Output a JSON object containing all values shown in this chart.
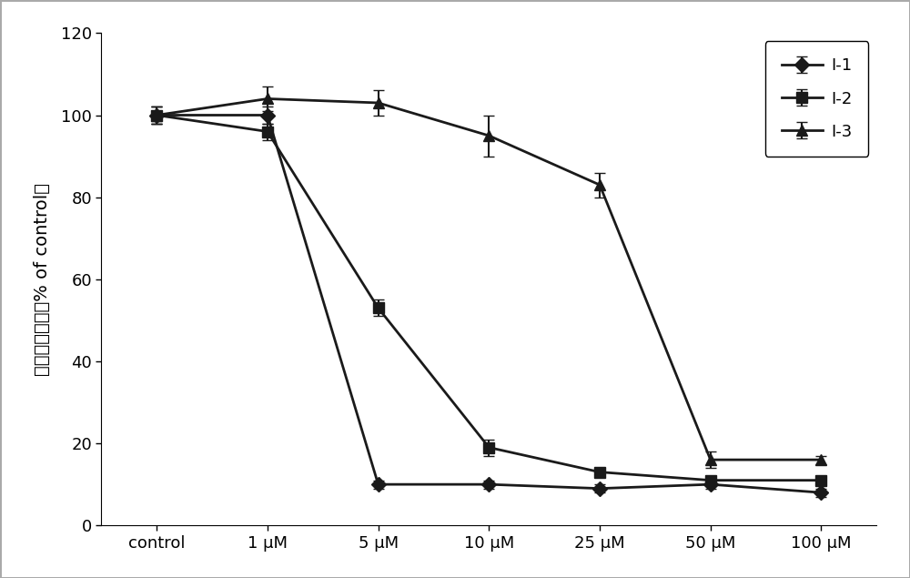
{
  "x_labels": [
    "control",
    "1 μM",
    "5 μM",
    "10 μM",
    "25 μM",
    "50 μM",
    "100 μM"
  ],
  "x_positions": [
    0,
    1,
    2,
    3,
    4,
    5,
    6
  ],
  "series": [
    {
      "name": "I-1",
      "marker": "D",
      "color": "#1a1a1a",
      "values": [
        100,
        100,
        10,
        10,
        9,
        10,
        8
      ],
      "yerr": [
        2,
        2,
        1,
        1,
        1,
        1,
        1
      ]
    },
    {
      "name": "I-2",
      "marker": "s",
      "color": "#1a1a1a",
      "values": [
        100,
        96,
        53,
        19,
        13,
        11,
        11
      ],
      "yerr": [
        2,
        2,
        2,
        2,
        1,
        1,
        1
      ]
    },
    {
      "name": "I-3",
      "marker": "^",
      "color": "#1a1a1a",
      "values": [
        100,
        104,
        103,
        95,
        83,
        16,
        16
      ],
      "yerr": [
        2,
        3,
        3,
        5,
        3,
        2,
        1
      ]
    }
  ],
  "ylabel_chinese": "癌细胞存活率",
  "ylabel_english": "% of control",
  "ylim": [
    0,
    120
  ],
  "yticks": [
    0,
    20,
    40,
    60,
    80,
    100,
    120
  ],
  "background_color": "#ffffff",
  "border_color": "#aaaaaa",
  "linewidth": 2.0,
  "markersize": 8,
  "legend_loc": "upper right",
  "capsize": 4,
  "elinewidth": 1.5,
  "tick_fontsize": 13,
  "ylabel_fontsize": 14
}
